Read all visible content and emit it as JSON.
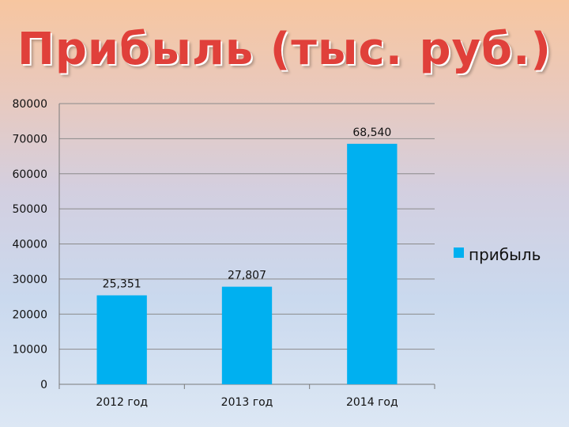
{
  "chart_data": {
    "type": "bar",
    "title": "Прибыль (тыс. руб.)",
    "categories": [
      "2012 год",
      "2013 год",
      "2014 год"
    ],
    "series": [
      {
        "name": "прибыль",
        "values": [
          25351,
          27807,
          68540
        ],
        "color": "#00b0f0"
      }
    ],
    "data_labels": [
      "25,351",
      "27,807",
      "68,540"
    ],
    "ylim": [
      0,
      80000
    ],
    "yticks": [
      "0",
      "10000",
      "20000",
      "30000",
      "40000",
      "50000",
      "60000",
      "70000",
      "80000"
    ],
    "grid": true,
    "legend_position": "right"
  }
}
